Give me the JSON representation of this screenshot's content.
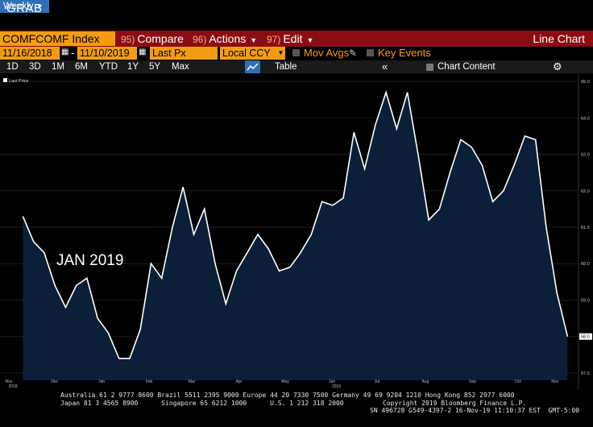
{
  "top_title": "GRAB",
  "toolbar": {
    "ticker": "COMFCOMF Index",
    "compare": {
      "num": "95)",
      "label": "Compare"
    },
    "actions": {
      "num": "96)",
      "label": "Actions"
    },
    "edit": {
      "num": "97)",
      "label": "Edit"
    },
    "chart_type": "Line Chart"
  },
  "settings": {
    "start_date": "11/16/2018",
    "end_date": "11/10/2019",
    "date_sep": "-",
    "price_field": "Last Px",
    "currency": "Local CCY",
    "mov_avgs": "Mov Avgs",
    "key_events": "Key Events"
  },
  "timeframes": [
    "1D",
    "3D",
    "1M",
    "6M",
    "YTD",
    "1Y",
    "5Y",
    "Max"
  ],
  "period": "Weekly",
  "table_label": "Table",
  "chart_content_label": "Chart Content",
  "colors": {
    "accent": "#f39c12",
    "bar": "#8b0d14",
    "fill": "#0b1f38",
    "line": "#ffffff",
    "selected": "#2f6fb8"
  },
  "chart_data": {
    "type": "area",
    "legend": "Last Price",
    "annotation": "JAN 2019",
    "ylim": [
      56.8,
      65.2
    ],
    "yticks": [
      "65.0",
      "64.0",
      "63.0",
      "62.0",
      "61.0",
      "60.0",
      "59.0",
      "58.0",
      "57.0"
    ],
    "last_value_label": "58.0",
    "x_month_labels": [
      "Nov",
      "Dec",
      "Jan",
      "Feb",
      "Mar",
      "Apr",
      "May",
      "Jun",
      "Jul",
      "Aug",
      "Sep",
      "Oct",
      "Nov"
    ],
    "x_year_labels": [
      "2018",
      "2019"
    ],
    "x": [
      "2018-11-16",
      "2018-11-23",
      "2018-11-30",
      "2018-12-07",
      "2018-12-14",
      "2018-12-21",
      "2018-12-28",
      "2019-01-04",
      "2019-01-11",
      "2019-01-18",
      "2019-01-25",
      "2019-02-01",
      "2019-02-08",
      "2019-02-15",
      "2019-02-22",
      "2019-03-01",
      "2019-03-08",
      "2019-03-15",
      "2019-03-22",
      "2019-03-29",
      "2019-04-05",
      "2019-04-12",
      "2019-04-19",
      "2019-04-26",
      "2019-05-03",
      "2019-05-10",
      "2019-05-17",
      "2019-05-24",
      "2019-05-31",
      "2019-06-07",
      "2019-06-14",
      "2019-06-21",
      "2019-06-28",
      "2019-07-05",
      "2019-07-12",
      "2019-07-19",
      "2019-07-26",
      "2019-08-02",
      "2019-08-09",
      "2019-08-16",
      "2019-08-23",
      "2019-08-30",
      "2019-09-06",
      "2019-09-13",
      "2019-09-20",
      "2019-09-27",
      "2019-10-04",
      "2019-10-11",
      "2019-10-18",
      "2019-10-25",
      "2019-11-01",
      "2019-11-08"
    ],
    "values": [
      61.3,
      60.6,
      60.3,
      59.4,
      58.8,
      59.4,
      59.6,
      58.5,
      58.1,
      57.4,
      57.4,
      58.2,
      60.0,
      59.6,
      61.0,
      62.1,
      60.8,
      61.5,
      60.0,
      58.9,
      59.8,
      60.3,
      60.8,
      60.4,
      59.8,
      59.9,
      60.3,
      60.8,
      61.7,
      61.6,
      61.8,
      63.6,
      62.6,
      63.8,
      64.7,
      63.7,
      64.7,
      63.0,
      61.2,
      61.5,
      62.5,
      63.4,
      63.2,
      62.7,
      61.7,
      62.0,
      62.7,
      63.5,
      63.4,
      61.0,
      59.2,
      58.0
    ]
  },
  "footer": {
    "line1": "Australia 61 2 9777 8600 Brazil 5511 2395 9000 Europe 44 20 7330 7500 Germany 49 69 9204 1210 Hong Kong 852 2977 6000",
    "line2_left": "Japan 81 3 4565 8900      Singapore 65 6212 1000      U.S. 1 212 318 2000",
    "line2_right": "Copyright 2019 Bloomberg Finance L.P.",
    "line3": "SN 496728 G549-4397-2 16-Nov-19 11:10:37 EST  GMT-5:00"
  }
}
